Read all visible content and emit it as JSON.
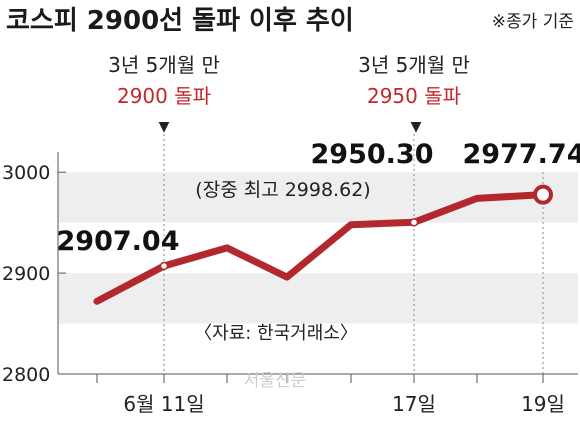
{
  "title": "코스피 2900선 돌파 이후 추이",
  "note": "※종가 기준",
  "source": "〈자료: 한국거래소〉",
  "watermark": "서울신문",
  "colors": {
    "line": "#b3282d",
    "accent": "#c0282d",
    "band": "#eeeeee"
  },
  "annotations": [
    {
      "line1": "3년 5개월 만",
      "line2": "2900 돌파",
      "arrow": "▼"
    },
    {
      "line1": "3년 5개월 만",
      "line2": "2950 돌파",
      "arrow": "▼"
    }
  ],
  "callouts": {
    "first": "2907.04",
    "peak": "2950.30",
    "last": "2977.74",
    "intraday": "(장중 최고 2998.62)"
  },
  "chart_data": {
    "type": "line",
    "x": [
      "",
      "6월 11일",
      "",
      "",
      "",
      "17일",
      "",
      "19일"
    ],
    "y_ticks": [
      2800,
      2900,
      3000
    ],
    "ylim": [
      2800,
      3020
    ],
    "bands": [
      [
        2850,
        2900
      ],
      [
        2950,
        3000
      ]
    ],
    "series": [
      {
        "values": [
          2872,
          2907.04,
          2925,
          2896,
          2948,
          2950.3,
          2974,
          2977.74
        ]
      }
    ],
    "x_tick_labels": [
      "6월 11일",
      "17일",
      "19일"
    ],
    "grid": false
  }
}
